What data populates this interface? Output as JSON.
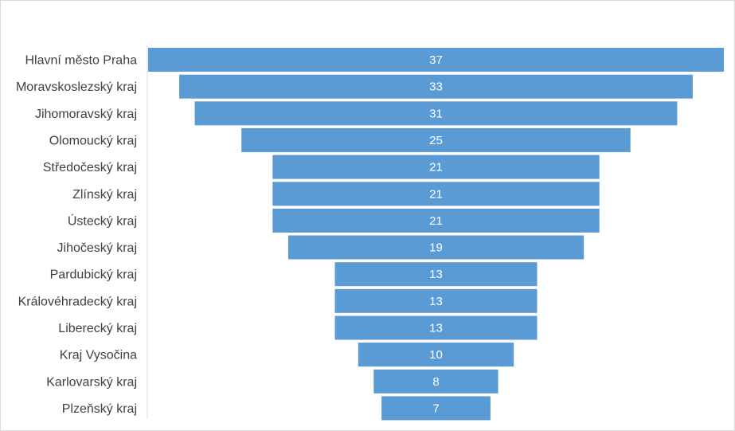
{
  "chart_data": {
    "type": "bar",
    "orientation": "horizontal-centered-funnel",
    "categories": [
      "Hlavní město Praha",
      "Moravskoslezský kraj",
      "Jihomoravský kraj",
      "Olomoucký kraj",
      "Středočeský kraj",
      "Zlínský kraj",
      "Ústecký kraj",
      "Jihočeský kraj",
      "Pardubický kraj",
      "Královéhradecký kraj",
      "Liberecký kraj",
      "Kraj Vysočina",
      "Karlovarský kraj",
      "Plzeňský kraj"
    ],
    "values": [
      37,
      33,
      31,
      25,
      21,
      21,
      21,
      19,
      13,
      13,
      13,
      10,
      8,
      7
    ],
    "bar_color": "#5b9bd5",
    "label_color": "#ffffff",
    "category_label_color": "#404040",
    "xlim": [
      0,
      37
    ],
    "grid": false,
    "legend": "none"
  }
}
